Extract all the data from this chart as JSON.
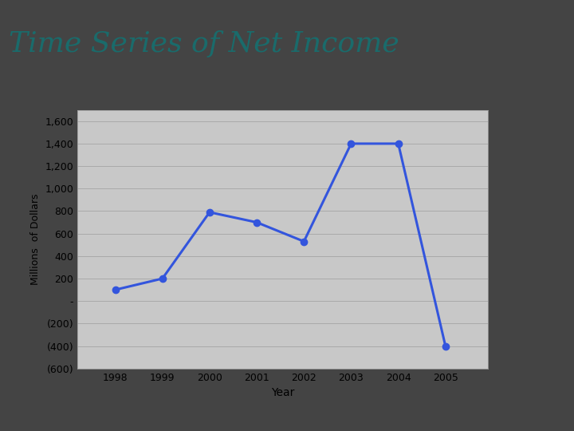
{
  "title": "Time Series of Net Income",
  "title_color": "#1a6b6b",
  "title_fontsize": 26,
  "xlabel": "Year",
  "ylabel": "Millions  of Dollars",
  "years": [
    1998,
    1999,
    2000,
    2001,
    2002,
    2003,
    2004,
    2005
  ],
  "values": [
    100,
    200,
    790,
    700,
    530,
    1400,
    1400,
    -400
  ],
  "line_color": "#3355dd",
  "marker_color": "#3355dd",
  "plot_bg_color": "#c8c8c8",
  "white_frame_color": "#ffffff",
  "title_bg_color": "#e0e4e8",
  "black_band_color": "#111111",
  "blue_sidebar_color": "#2a5fa5",
  "outer_bg_color": "#444444",
  "ylim": [
    -600,
    1700
  ],
  "yticks": [
    -600,
    -400,
    -200,
    0,
    200,
    400,
    600,
    800,
    1000,
    1200,
    1400,
    1600
  ],
  "ytick_labels": [
    "(600)",
    "(400)",
    "(200)",
    "-",
    "200",
    "400",
    "600",
    "800",
    "1,000",
    "1,200",
    "1,400",
    "1,600"
  ],
  "grid_color": "#aaaaaa",
  "tick_fontsize": 9,
  "ylabel_fontsize": 9,
  "xlabel_fontsize": 10
}
